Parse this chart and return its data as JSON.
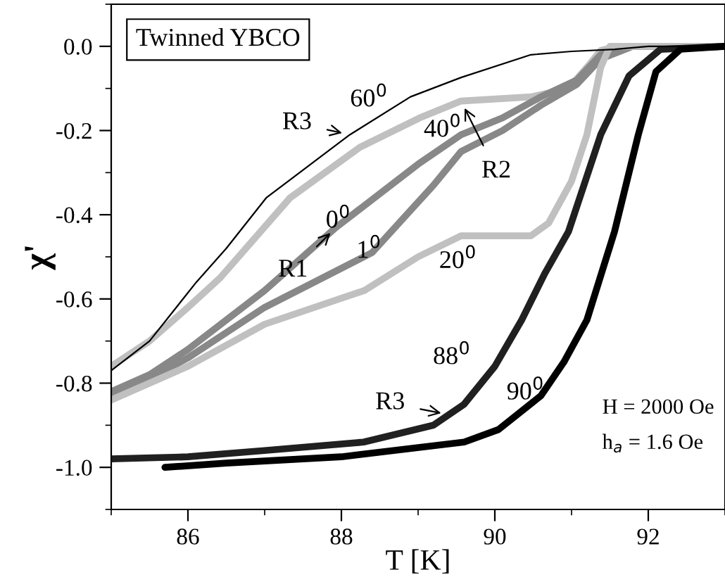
{
  "chart_data": {
    "type": "line",
    "xlabel": "T [K]",
    "ylabel": "χ'",
    "xlim": [
      85,
      93
    ],
    "ylim": [
      -1.1,
      0.1
    ],
    "xticks": [
      86,
      88,
      90,
      92
    ],
    "yticks": [
      {
        "value": 0,
        "label": "0.0"
      },
      {
        "value": -0.2,
        "label": "-0.2"
      },
      {
        "value": -0.4,
        "label": "-0.4"
      },
      {
        "value": -0.6,
        "label": "-0.6"
      },
      {
        "value": -0.8,
        "label": "-0.8"
      },
      {
        "value": -1.0,
        "label": "-1.0"
      }
    ],
    "grid": false,
    "legend": false,
    "marker": "none",
    "line_style": "solid",
    "series": [
      {
        "color": "#000000",
        "x": [
          85,
          85.5,
          86.11,
          86.5,
          87.02,
          87.6,
          88.11,
          88.9,
          89.56,
          90.47,
          91.0,
          91.56,
          92,
          93
        ],
        "values": [
          -0.77,
          -0.7,
          -0.56,
          -0.48,
          -0.36,
          -0.28,
          -0.21,
          -0.12,
          -0.074,
          -0.02,
          -0.012,
          -0.007,
          0,
          0
        ]
      },
      {
        "color": "#c0c0c0",
        "x": [
          85,
          85.5,
          86,
          86.42,
          87.33,
          88.24,
          89.02,
          89.56,
          90.47,
          90.96,
          91.2,
          91.38,
          91.6,
          92,
          93
        ],
        "values": [
          -0.76,
          -0.7,
          -0.62,
          -0.55,
          -0.36,
          -0.24,
          -0.17,
          -0.13,
          -0.12,
          -0.1,
          -0.05,
          -0.01,
          0,
          0,
          0
        ]
      },
      {
        "color": "#888888",
        "x": [
          85,
          85.5,
          86,
          87,
          87.93,
          89,
          89.56,
          90.1,
          90.6,
          91.07,
          91.38,
          91.8,
          92.2,
          93
        ],
        "values": [
          -0.82,
          -0.78,
          -0.72,
          -0.58,
          -0.43,
          -0.28,
          -0.21,
          -0.17,
          -0.12,
          -0.08,
          -0.02,
          0,
          0,
          0
        ]
      },
      {
        "color": "#888888",
        "x": [
          85,
          85.5,
          86,
          87,
          88.4,
          89.2,
          89.56,
          90.1,
          90.6,
          91.07,
          91.38,
          91.8,
          92.2,
          93
        ],
        "values": [
          -0.83,
          -0.79,
          -0.74,
          -0.62,
          -0.49,
          -0.33,
          -0.25,
          -0.2,
          -0.14,
          -0.09,
          -0.03,
          0,
          0,
          0
        ]
      },
      {
        "color": "#c0c0c0",
        "x": [
          85,
          85.5,
          86,
          87,
          88.3,
          89.0,
          89.56,
          90.47,
          90.7,
          91.0,
          91.2,
          91.38,
          91.5,
          92,
          93
        ],
        "values": [
          -0.84,
          -0.8,
          -0.76,
          -0.66,
          -0.58,
          -0.5,
          -0.45,
          -0.45,
          -0.42,
          -0.32,
          -0.21,
          -0.05,
          0,
          0,
          0
        ]
      },
      {
        "color": "#202020",
        "x": [
          85,
          86,
          87,
          88.29,
          89.2,
          89.6,
          90.0,
          90.35,
          90.65,
          90.96,
          91.38,
          91.75,
          92.16,
          93
        ],
        "values": [
          -0.98,
          -0.975,
          -0.96,
          -0.94,
          -0.9,
          -0.85,
          -0.76,
          -0.65,
          -0.54,
          -0.44,
          -0.21,
          -0.07,
          -0.007,
          0
        ]
      },
      {
        "color": "#000000",
        "x": [
          85.7,
          86.5,
          88,
          89.6,
          90.05,
          90.6,
          90.9,
          91.2,
          91.56,
          91.87,
          92.1,
          92.42,
          93
        ],
        "values": [
          -1.0,
          -0.99,
          -0.975,
          -0.94,
          -0.91,
          -0.83,
          -0.75,
          -0.65,
          -0.44,
          -0.21,
          -0.06,
          -0.007,
          0
        ]
      }
    ],
    "annotations": [
      "Twinned YBCO",
      "H = 2000 Oe",
      "h$_{a}$ = 1.6 Oe",
      "60$^{0}$",
      "40$^{0}$",
      "0$^{0}$",
      "1$^{0}$",
      "20$^{0}$",
      "88$^{0}$",
      "90$^{0}$",
      {
        "text": "R3",
        "x": 88.11,
        "y": -0.21
      },
      {
        "text": "R1",
        "x": 87.93,
        "y": -0.43
      },
      {
        "text": "R2",
        "x": 89.56,
        "y": -0.13
      },
      {
        "text": "R3",
        "x": 89.4,
        "y": -0.875
      }
    ]
  }
}
